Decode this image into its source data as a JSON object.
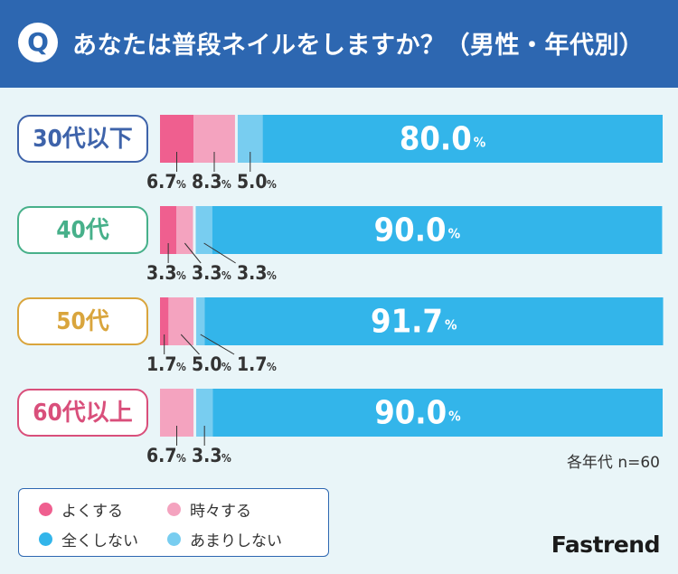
{
  "header": {
    "badge": "Q",
    "title": "あなたは普段ネイルをしますか？（男性・年代別）"
  },
  "chart_data": {
    "type": "bar",
    "stacked": true,
    "orientation": "horizontal",
    "unit": "%",
    "categories": [
      "30代以下",
      "40代",
      "50代",
      "60代以上"
    ],
    "category_colors": [
      "#3e63aa",
      "#47b08a",
      "#d9a53d",
      "#d94f7b"
    ],
    "series": [
      {
        "name": "よくする",
        "color": "#ef5f8f",
        "values": [
          6.7,
          3.3,
          1.7,
          0
        ]
      },
      {
        "name": "時々する",
        "color": "#f4a3bf",
        "values": [
          8.3,
          3.3,
          5.0,
          6.7
        ]
      },
      {
        "name": "あまりしない",
        "color": "#78cdf0",
        "values": [
          5.0,
          3.3,
          1.7,
          3.3
        ]
      },
      {
        "name": "全くしない",
        "color": "#33b5ea",
        "values": [
          80.0,
          90.0,
          91.7,
          90.0
        ]
      }
    ],
    "note": "各年代 n=60"
  },
  "legend": {
    "items": [
      {
        "label": "よくする",
        "color": "#ef5f8f"
      },
      {
        "label": "時々する",
        "color": "#f4a3bf"
      },
      {
        "label": "全くしない",
        "color": "#33b5ea"
      },
      {
        "label": "あまりしない",
        "color": "#78cdf0"
      }
    ]
  },
  "brand": "Fastrend"
}
